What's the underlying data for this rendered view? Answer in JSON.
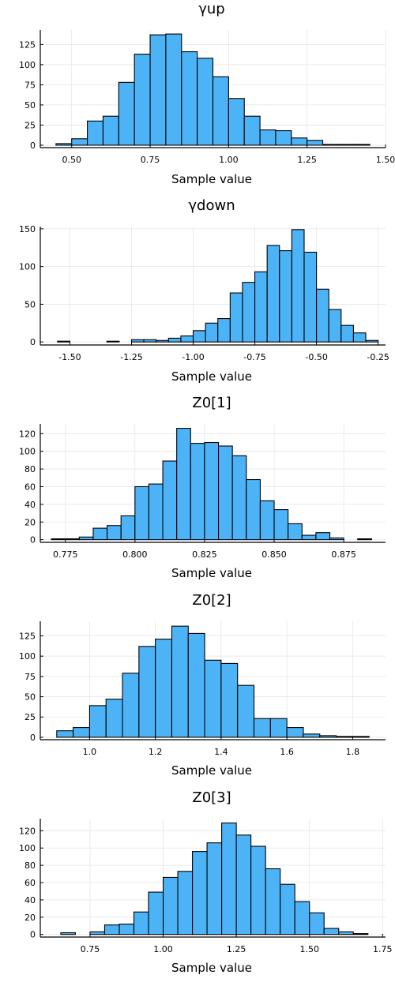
{
  "chart_data": [
    {
      "type": "bar",
      "title": "γup",
      "xlabel": "Sample value",
      "xlim": [
        0.4,
        1.5
      ],
      "ylim": [
        -3,
        143
      ],
      "xticks": [
        0.5,
        0.75,
        1.0,
        1.25,
        1.5
      ],
      "xtick_labels": [
        "0.50",
        "0.75",
        "1.00",
        "1.25",
        "1.50"
      ],
      "yticks": [
        0,
        25,
        50,
        75,
        100,
        125
      ],
      "ytick_labels": [
        "0",
        "25",
        "50",
        "75",
        "100",
        "125"
      ],
      "bin_start": 0.45,
      "bin_width": 0.05,
      "values": [
        2,
        8,
        30,
        36,
        78,
        113,
        137,
        138,
        116,
        108,
        85,
        58,
        36,
        19,
        18,
        9,
        6,
        1,
        1,
        1
      ],
      "grid": true
    },
    {
      "type": "bar",
      "title": "γdown",
      "xlabel": "Sample value",
      "xlim": [
        -1.62,
        -0.22
      ],
      "ylim": [
        -4,
        153
      ],
      "xticks": [
        -1.5,
        -1.25,
        -1.0,
        -0.75,
        -0.5,
        -0.25
      ],
      "xtick_labels": [
        "-1.50",
        "-1.25",
        "-1.00",
        "-0.75",
        "-0.50",
        "-0.25"
      ],
      "yticks": [
        0,
        50,
        100,
        150
      ],
      "ytick_labels": [
        "0",
        "50",
        "100",
        "150"
      ],
      "bin_start": -1.55,
      "bin_width": 0.05,
      "values": [
        1,
        0,
        0,
        0,
        1,
        0,
        3,
        3,
        2,
        5,
        8,
        15,
        25,
        31,
        65,
        79,
        93,
        128,
        121,
        149,
        119,
        70,
        43,
        22,
        12,
        2
      ],
      "grid": true
    },
    {
      "type": "bar",
      "title": "Z0[1]",
      "xlabel": "Sample value",
      "xlim": [
        0.766,
        0.89
      ],
      "ylim": [
        -3,
        131
      ],
      "xticks": [
        0.775,
        0.8,
        0.825,
        0.85,
        0.875
      ],
      "xtick_labels": [
        "0.775",
        "0.800",
        "0.825",
        "0.850",
        "0.875"
      ],
      "yticks": [
        0,
        20,
        40,
        60,
        80,
        100,
        120
      ],
      "ytick_labels": [
        "0",
        "20",
        "40",
        "60",
        "80",
        "100",
        "120"
      ],
      "bin_start": 0.77,
      "bin_width": 0.005,
      "values": [
        1,
        1,
        3,
        13,
        16,
        27,
        60,
        63,
        89,
        126,
        109,
        110,
        106,
        95,
        68,
        44,
        34,
        18,
        5,
        8,
        2,
        0,
        1
      ],
      "grid": true
    },
    {
      "type": "bar",
      "title": "Z0[2]",
      "xlabel": "Sample value",
      "xlim": [
        0.85,
        1.9
      ],
      "ylim": [
        -3,
        143
      ],
      "xticks": [
        1.0,
        1.2,
        1.4,
        1.6,
        1.8
      ],
      "xtick_labels": [
        "1.0",
        "1.2",
        "1.4",
        "1.6",
        "1.8"
      ],
      "yticks": [
        0,
        25,
        50,
        75,
        100,
        125
      ],
      "ytick_labels": [
        "0",
        "25",
        "50",
        "75",
        "100",
        "125"
      ],
      "bin_start": 0.9,
      "bin_width": 0.05,
      "values": [
        8,
        12,
        39,
        47,
        79,
        112,
        121,
        137,
        128,
        95,
        91,
        64,
        23,
        23,
        12,
        4,
        2,
        1,
        1
      ],
      "grid": true
    },
    {
      "type": "bar",
      "title": "Z0[3]",
      "xlabel": "Sample value",
      "xlim": [
        0.58,
        1.76
      ],
      "ylim": [
        -3,
        134
      ],
      "xticks": [
        0.75,
        1.0,
        1.25,
        1.5,
        1.75
      ],
      "xtick_labels": [
        "0.75",
        "1.00",
        "1.25",
        "1.50",
        "1.75"
      ],
      "yticks": [
        0,
        20,
        40,
        60,
        80,
        100,
        120
      ],
      "ytick_labels": [
        "0",
        "20",
        "40",
        "60",
        "80",
        "100",
        "120"
      ],
      "bin_start": 0.65,
      "bin_width": 0.05,
      "values": [
        2,
        0,
        3,
        11,
        12,
        26,
        49,
        66,
        73,
        96,
        106,
        129,
        115,
        102,
        76,
        58,
        38,
        25,
        7,
        3,
        1
      ],
      "grid": true
    }
  ]
}
